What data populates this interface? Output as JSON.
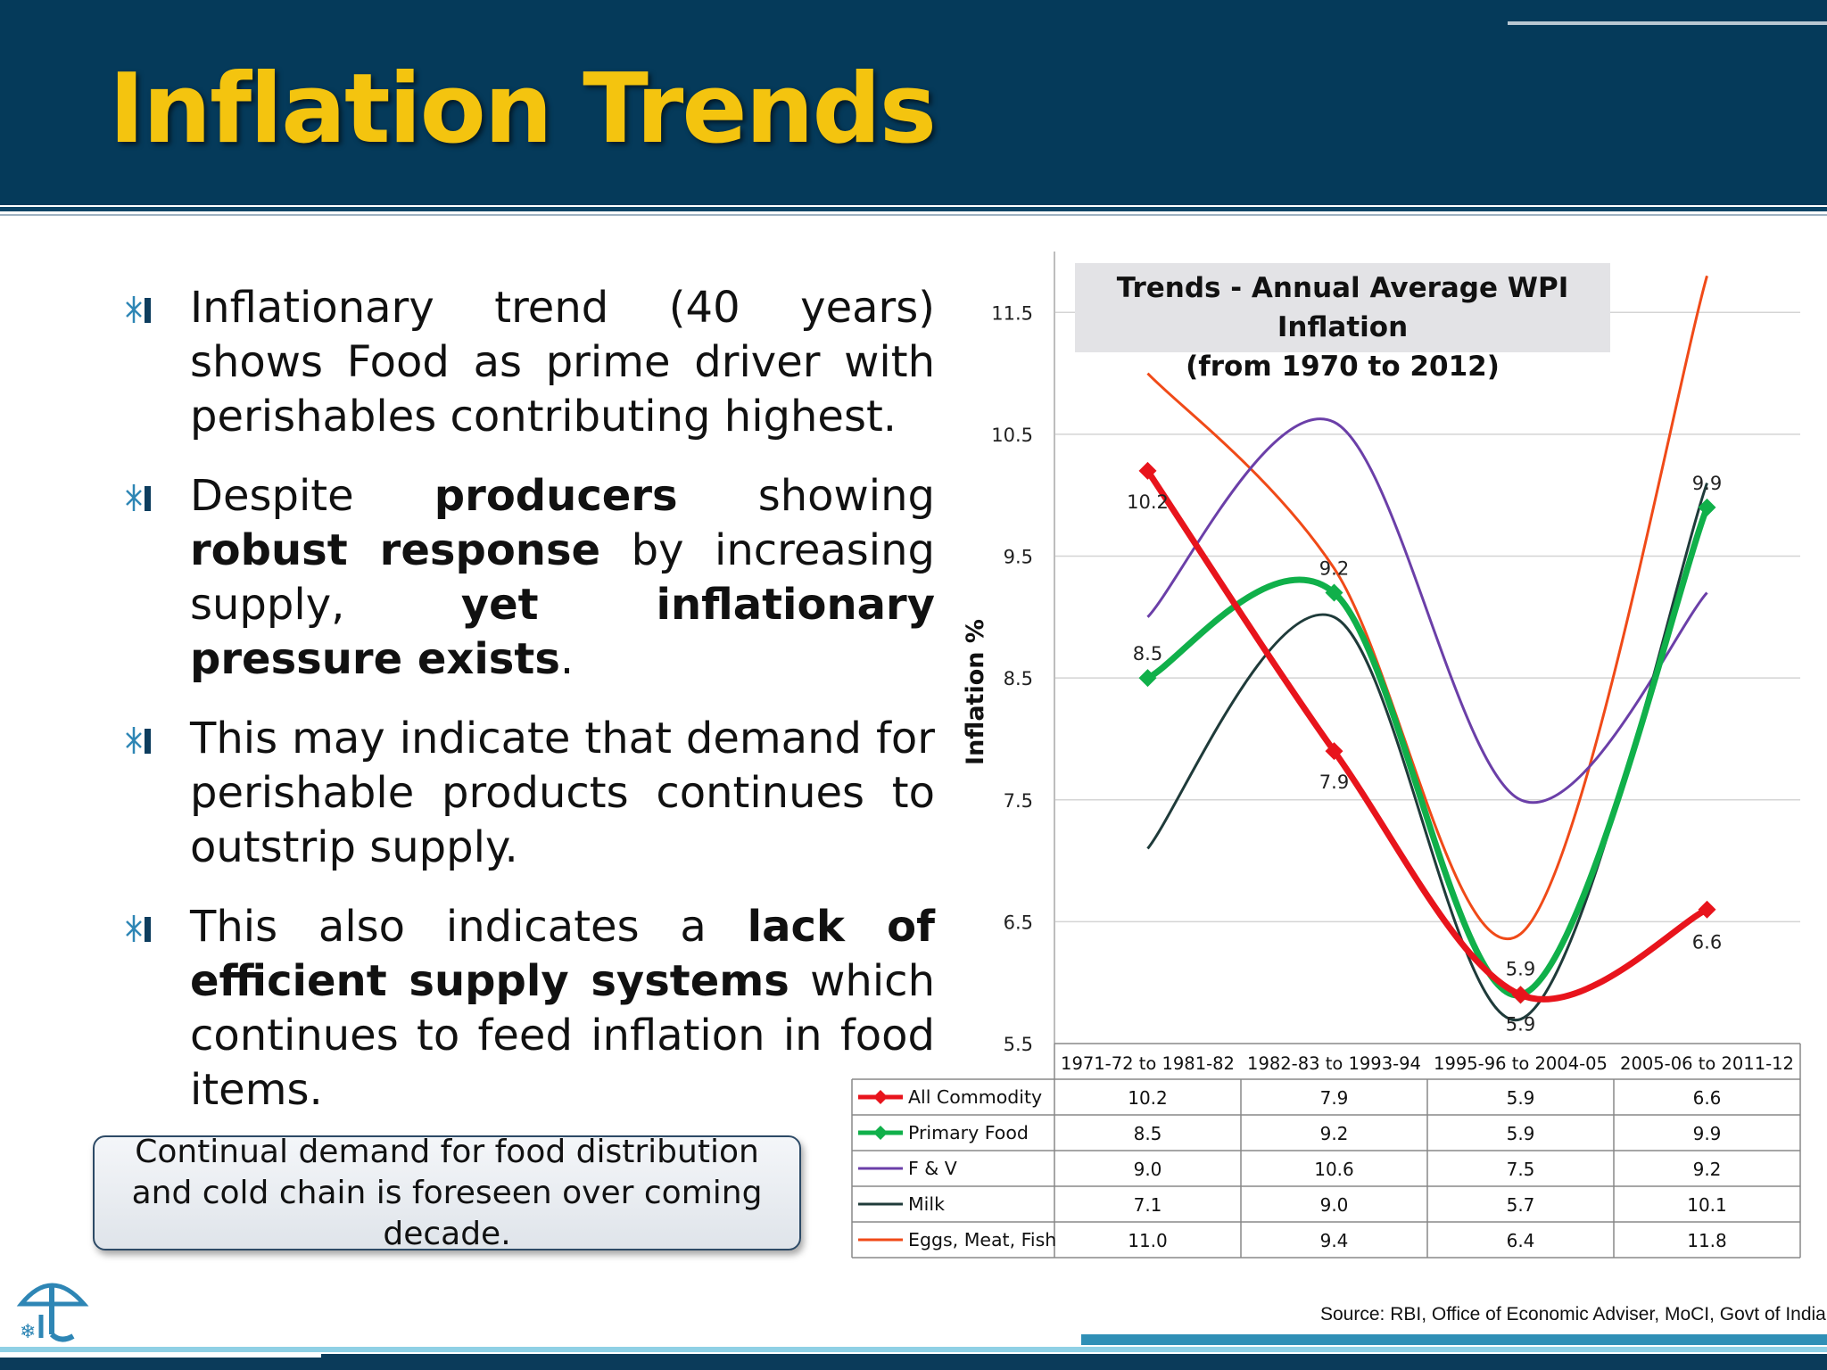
{
  "slide": {
    "title": "Inflation Trends",
    "bullets": [
      {
        "parts": [
          {
            "t": "Inflationary trend (40 years) shows Food as prime driver with perishables contributing highest.",
            "b": false
          }
        ]
      },
      {
        "parts": [
          {
            "t": "Despite ",
            "b": false
          },
          {
            "t": "producers",
            "b": true
          },
          {
            "t": " showing ",
            "b": false
          },
          {
            "t": "robust response",
            "b": true
          },
          {
            "t": " by increasing supply, ",
            "b": false
          },
          {
            "t": "yet inflationary pressure exists",
            "b": true
          },
          {
            "t": ".",
            "b": false
          }
        ]
      },
      {
        "parts": [
          {
            "t": "This may indicate that demand for perishable products continues to outstrip supply.",
            "b": false
          }
        ]
      },
      {
        "parts": [
          {
            "t": "This also indicates a ",
            "b": false
          },
          {
            "t": "lack of efficient supply systems",
            "b": true
          },
          {
            "t": " which continues to feed inflation in food items.",
            "b": false
          }
        ]
      }
    ],
    "callout": "Continual demand for food distribution and cold chain is foreseen over coming decade.",
    "source": "Source: RBI, Office of Economic Adviser, MoCI, Govt of India"
  },
  "chart_data": {
    "type": "line",
    "title": "Trends - Annual Average WPI Inflation",
    "subtitle": "(from 1970 to 2012)",
    "ylabel": "Inflation %",
    "xlabel": "",
    "ylim": [
      5.5,
      12.0
    ],
    "yticks": [
      "5.5",
      "6.5",
      "7.5",
      "8.5",
      "9.5",
      "10.5",
      "11.5"
    ],
    "grid": true,
    "categories": [
      "1971-72 to 1981-82",
      "1982-83 to 1993-94",
      "1995-96 to 2004-05",
      "2005-06 to 2011-12"
    ],
    "series": [
      {
        "name": "All Commodity",
        "color": "#e8141c",
        "marker": "diamond",
        "labels": true,
        "values": [
          10.2,
          7.9,
          5.9,
          6.6
        ],
        "display": [
          "10.2",
          "7.9",
          "5.9",
          "6.6"
        ]
      },
      {
        "name": "Primary Food",
        "color": "#10b04a",
        "marker": "diamond",
        "labels": true,
        "values": [
          8.5,
          9.2,
          5.9,
          9.9
        ],
        "display": [
          "8.5",
          "9.2",
          "5.9",
          "9.9"
        ]
      },
      {
        "name": "F & V",
        "color": "#6b3fa8",
        "marker": "none",
        "labels": false,
        "values": [
          9.0,
          10.6,
          7.5,
          9.2
        ],
        "display": [
          "9.0",
          "10.6",
          "7.5",
          "9.2"
        ]
      },
      {
        "name": "Milk",
        "color": "#1f3b3a",
        "marker": "none",
        "labels": false,
        "values": [
          7.1,
          9.0,
          5.7,
          10.1
        ],
        "display": [
          "7.1",
          "9.0",
          "5.7",
          "10.1"
        ]
      },
      {
        "name": "Eggs, Meat, Fish",
        "color": "#f04a18",
        "marker": "none",
        "labels": false,
        "values": [
          11.0,
          9.4,
          6.4,
          11.8
        ],
        "display": [
          "11.0",
          "9.4",
          "6.4",
          "11.8"
        ]
      }
    ]
  }
}
